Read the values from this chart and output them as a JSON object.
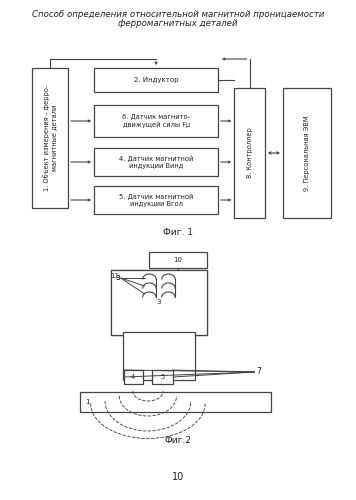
{
  "title_line1": "Способ определения относительной магнитной проницаемости",
  "title_line2": "ферромагнитных деталей",
  "fig1_label": "Фиг. 1",
  "fig2_label": "Фиг.2",
  "page_number": "10",
  "bg_color": "#ffffff",
  "text_color": "#222222",
  "block1_text": "1. Объект измерения - ферро-\nмагнитные детали",
  "block2_text": "2. Индуктор",
  "block6_text": "6. Датчик магнито-\nдвижущей силы Fμ",
  "block4_text": "4. Датчик магнитной\nиндукции Bинд",
  "block5_text": "5. Датчик магнитной\nиндукции Bгол",
  "block8_text": "8. Контроллер",
  "block9_text": "9. Персональная ЭВМ"
}
